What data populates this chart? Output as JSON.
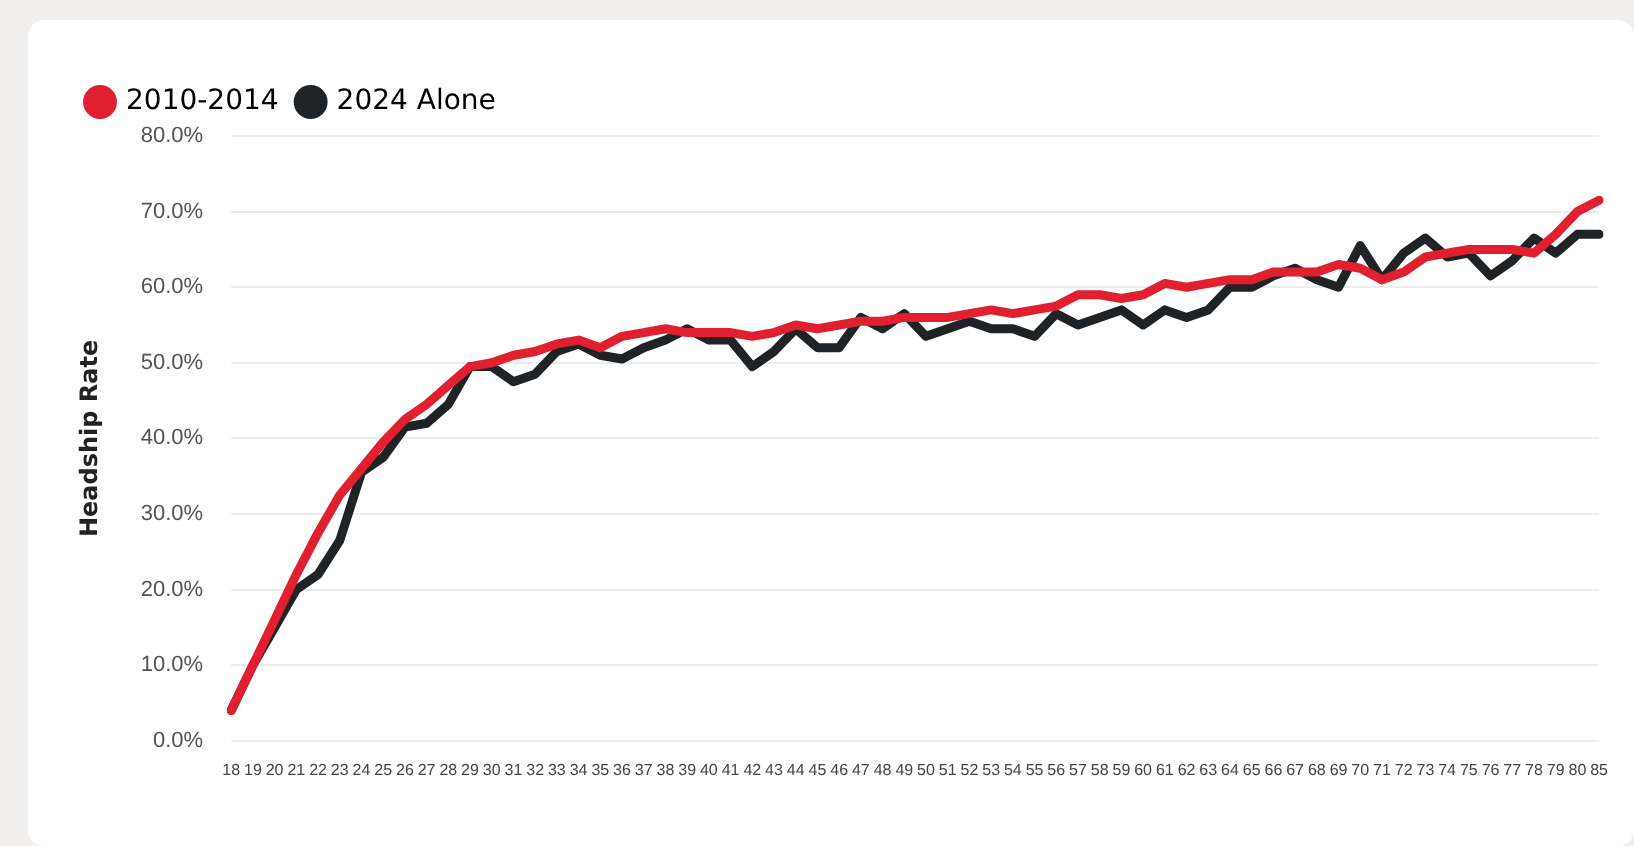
{
  "chart_data": {
    "type": "line",
    "ylabel": "Headship Rate",
    "categories": [
      "18",
      "19",
      "20",
      "21",
      "22",
      "23",
      "24",
      "25",
      "26",
      "27",
      "28",
      "29",
      "30",
      "31",
      "32",
      "33",
      "34",
      "35",
      "36",
      "37",
      "38",
      "39",
      "40",
      "41",
      "42",
      "43",
      "44",
      "45",
      "46",
      "47",
      "48",
      "49",
      "50",
      "51",
      "52",
      "53",
      "54",
      "55",
      "56",
      "57",
      "58",
      "59",
      "60",
      "61",
      "62",
      "63",
      "64",
      "65",
      "66",
      "67",
      "68",
      "69",
      "70",
      "71",
      "72",
      "73",
      "74",
      "75",
      "76",
      "77",
      "78",
      "79",
      "80",
      "85"
    ],
    "series": [
      {
        "name": "2010-2014",
        "color": "#e0202e",
        "values": [
          4,
          10,
          16,
          22,
          27.5,
          32.5,
          36,
          39.5,
          42.5,
          44.5,
          47,
          49.5,
          50,
          51,
          51.5,
          52.5,
          53,
          52,
          53.5,
          54,
          54.5,
          54,
          54,
          54,
          53.5,
          54,
          55,
          54.5,
          55,
          55.5,
          55.5,
          56,
          56,
          56,
          56.5,
          57,
          56.5,
          57,
          57.5,
          59,
          59,
          58.5,
          59,
          60.5,
          60,
          60.5,
          61,
          61,
          62,
          62,
          62,
          63,
          62.5,
          61,
          62,
          64,
          64.5,
          65,
          65,
          65,
          64.5,
          67,
          70,
          71.5
        ]
      },
      {
        "name": "2024 Alone",
        "color": "#1f2326",
        "values": [
          4,
          10,
          15,
          20,
          22,
          26.5,
          35.5,
          37.5,
          41.5,
          42,
          44.5,
          49.5,
          49.5,
          47.5,
          48.5,
          51.5,
          52.5,
          51,
          50.5,
          52,
          53,
          54.5,
          53,
          53,
          49.5,
          51.5,
          54.5,
          52,
          52,
          56,
          54.5,
          56.5,
          53.5,
          54.5,
          55.5,
          54.5,
          54.5,
          53.5,
          56.5,
          55,
          56,
          57,
          55,
          57,
          56,
          57,
          60,
          60,
          61.5,
          62.5,
          61,
          60,
          65.5,
          61,
          64.5,
          66.5,
          64,
          64.5,
          61.5,
          63.5,
          66.5,
          64.5,
          67,
          67
        ]
      }
    ],
    "ylim": [
      0,
      80
    ],
    "yticks": [
      {
        "value": 0,
        "label": "0.0%"
      },
      {
        "value": 10,
        "label": "10.0%"
      },
      {
        "value": 20,
        "label": "20.0%"
      },
      {
        "value": 30,
        "label": "30.0%"
      },
      {
        "value": 40,
        "label": "40.0%"
      },
      {
        "value": 50,
        "label": "50.0%"
      },
      {
        "value": 60,
        "label": "60.0%"
      },
      {
        "value": 70,
        "label": "70.0%"
      },
      {
        "value": 80,
        "label": "80.0%"
      }
    ],
    "grid": "y",
    "legend": "top left",
    "marker": "none",
    "line_style": "solid"
  }
}
